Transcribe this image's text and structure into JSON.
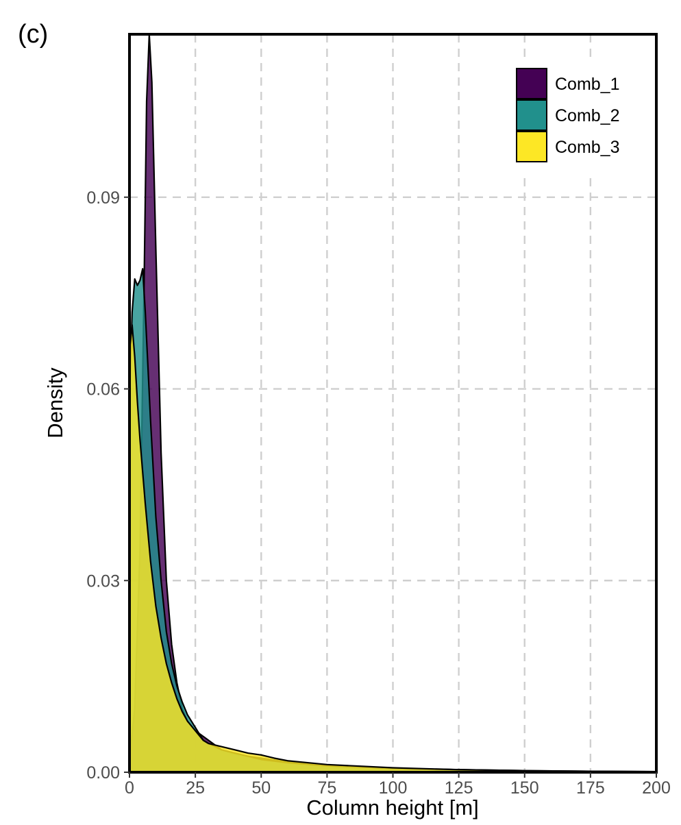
{
  "panel_label": "(c)",
  "chart_data": {
    "type": "area",
    "title": "",
    "xlabel": "Column height [m]",
    "ylabel": "Density",
    "xlim": [
      0,
      200
    ],
    "ylim": [
      0,
      0.1155
    ],
    "x_ticks": [
      0,
      25,
      50,
      75,
      100,
      125,
      150,
      175,
      200
    ],
    "x_tick_labels": [
      "0",
      "25",
      "50",
      "75",
      "100",
      "125",
      "150",
      "175",
      "200"
    ],
    "y_ticks": [
      0.0,
      0.03,
      0.06,
      0.09
    ],
    "y_tick_labels": [
      "0.00",
      "0.03",
      "0.06",
      "0.09"
    ],
    "grid": true,
    "grid_style": "dashed",
    "legend_position": "top-right",
    "series": [
      {
        "name": "Comb_1",
        "color": "#440154",
        "points": [
          [
            0,
            0.002
          ],
          [
            2,
            0.01
          ],
          [
            4,
            0.035
          ],
          [
            5.5,
            0.075
          ],
          [
            6.5,
            0.105
          ],
          [
            7.5,
            0.1155
          ],
          [
            8.5,
            0.108
          ],
          [
            10,
            0.082
          ],
          [
            12,
            0.05
          ],
          [
            14,
            0.03
          ],
          [
            16,
            0.02
          ],
          [
            18,
            0.014
          ],
          [
            20,
            0.01
          ],
          [
            22,
            0.008
          ],
          [
            25,
            0.0065
          ],
          [
            30,
            0.005
          ],
          [
            35,
            0.0035
          ],
          [
            40,
            0.0028
          ],
          [
            50,
            0.0022
          ],
          [
            60,
            0.0016
          ],
          [
            75,
            0.0011
          ],
          [
            100,
            0.0006
          ],
          [
            125,
            0.0004
          ],
          [
            150,
            0.00025
          ],
          [
            175,
            0.00015
          ],
          [
            200,
            0.0001
          ]
        ]
      },
      {
        "name": "Comb_2",
        "color": "#21908C",
        "points": [
          [
            0,
            0.058
          ],
          [
            1,
            0.072
          ],
          [
            2,
            0.0772
          ],
          [
            3,
            0.0762
          ],
          [
            4,
            0.077
          ],
          [
            5,
            0.0788
          ],
          [
            6,
            0.072
          ],
          [
            8,
            0.055
          ],
          [
            10,
            0.04
          ],
          [
            12,
            0.03
          ],
          [
            14,
            0.022
          ],
          [
            16,
            0.017
          ],
          [
            18,
            0.0135
          ],
          [
            20,
            0.011
          ],
          [
            22,
            0.009
          ],
          [
            25,
            0.007
          ],
          [
            28,
            0.005
          ],
          [
            30,
            0.0045
          ],
          [
            35,
            0.0035
          ],
          [
            40,
            0.003
          ],
          [
            45,
            0.0025
          ],
          [
            50,
            0.002
          ],
          [
            60,
            0.0015
          ],
          [
            75,
            0.001
          ],
          [
            100,
            0.0006
          ],
          [
            125,
            0.0004
          ],
          [
            150,
            0.0002
          ],
          [
            175,
            0.0001
          ],
          [
            200,
            0.0001
          ]
        ]
      },
      {
        "name": "Comb_3",
        "color": "#FDE725",
        "points": [
          [
            0,
            0.066
          ],
          [
            1,
            0.07
          ],
          [
            2,
            0.065
          ],
          [
            3,
            0.058
          ],
          [
            4,
            0.052
          ],
          [
            6,
            0.042
          ],
          [
            8,
            0.033
          ],
          [
            10,
            0.026
          ],
          [
            12,
            0.021
          ],
          [
            14,
            0.017
          ],
          [
            16,
            0.014
          ],
          [
            18,
            0.0115
          ],
          [
            20,
            0.0095
          ],
          [
            22,
            0.008
          ],
          [
            25,
            0.0065
          ],
          [
            28,
            0.005
          ],
          [
            30,
            0.0045
          ],
          [
            35,
            0.004
          ],
          [
            40,
            0.0035
          ],
          [
            45,
            0.003
          ],
          [
            50,
            0.0027
          ],
          [
            55,
            0.0022
          ],
          [
            60,
            0.0018
          ],
          [
            70,
            0.0014
          ],
          [
            75,
            0.0012
          ],
          [
            85,
            0.001
          ],
          [
            100,
            0.0007
          ],
          [
            125,
            0.0004
          ],
          [
            150,
            0.00025
          ],
          [
            175,
            0.00015
          ],
          [
            200,
            0.0001
          ]
        ]
      }
    ]
  }
}
